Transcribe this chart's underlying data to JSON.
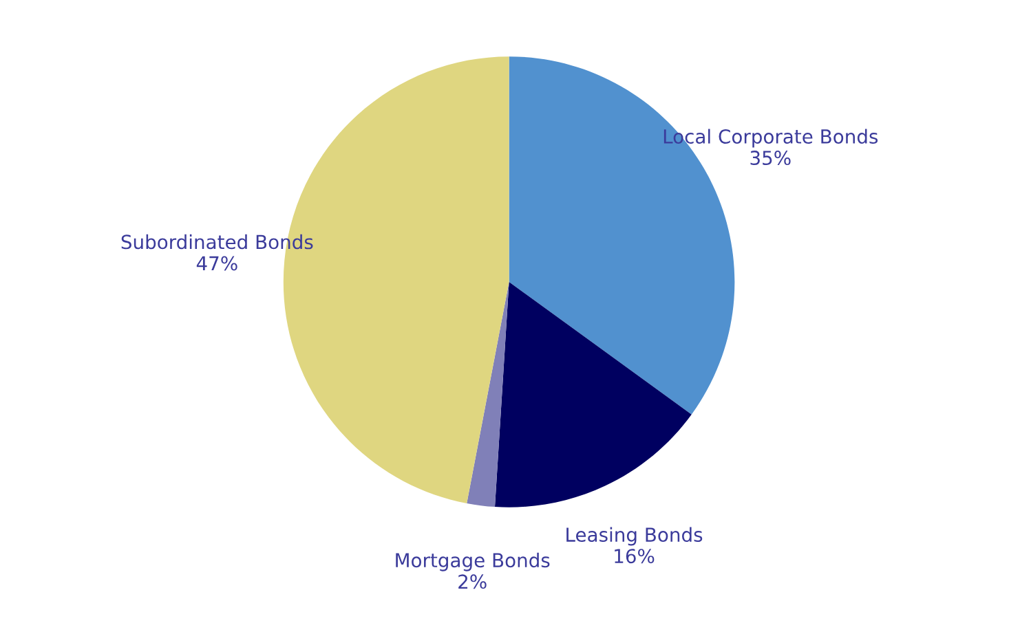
{
  "chart_data": {
    "type": "pie",
    "categories": [
      "Local Corporate Bonds",
      "Leasing Bonds",
      "Mortgage Bonds",
      "Subordinated Bonds"
    ],
    "values": [
      35,
      16,
      2,
      47
    ],
    "colors": [
      "#5191cf",
      "#000060",
      "#8080b8",
      "#dfd680"
    ],
    "value_labels": [
      "35%",
      "16%",
      "2%",
      "47%"
    ],
    "legend": false
  }
}
